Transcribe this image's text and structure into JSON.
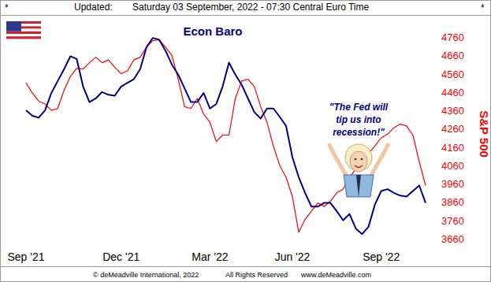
{
  "header": {
    "left_mark": "*",
    "label": "Updated:",
    "timestamp": "Saturday 03 September, 2022 - 07:30 Central Euro Time",
    "right_mark": "*"
  },
  "chart_data": {
    "type": "line",
    "title": "Econ Baro",
    "ylabel": "S&P 500",
    "annotation": "\"The Fed will\ntip us into\nrecession!\"",
    "categories": [
      "Sep '21",
      null,
      null,
      null,
      null,
      null,
      null,
      null,
      null,
      null,
      null,
      null,
      null,
      null,
      null,
      "Dec '21",
      null,
      null,
      null,
      null,
      null,
      null,
      null,
      null,
      null,
      null,
      null,
      null,
      null,
      "Mar '22",
      null,
      null,
      null,
      null,
      null,
      null,
      null,
      null,
      null,
      null,
      null,
      null,
      "Jun '22",
      null,
      null,
      null,
      null,
      null,
      null,
      null,
      null,
      null,
      null,
      null,
      null,
      null,
      "Sep '22",
      null,
      null,
      null,
      null,
      null,
      null,
      null
    ],
    "series": [
      {
        "name": "Econ Baro",
        "color": "#000080",
        "values": [
          4360,
          4330,
          4320,
          4360,
          4455,
          4520,
          4585,
          4655,
          4640,
          4490,
          4405,
          4425,
          4460,
          4445,
          4440,
          4490,
          4510,
          4530,
          4585,
          4705,
          4755,
          4745,
          4685,
          4610,
          4555,
          4480,
          4405,
          4405,
          4455,
          4370,
          4395,
          4490,
          4620,
          4555,
          4500,
          4425,
          4350,
          4315,
          4370,
          4370,
          4325,
          4275,
          4105,
          3995,
          3910,
          3835,
          3835,
          3855,
          3855,
          3810,
          3760,
          3795,
          3715,
          3685,
          3725,
          3845,
          3920,
          3930,
          3910,
          3895,
          3890,
          3920,
          3950,
          3855
        ]
      },
      {
        "name": "S&P 500",
        "color": "#ff0000",
        "values": [
          4510,
          4455,
          4410,
          4395,
          4360,
          4370,
          4470,
          4545,
          4590,
          4585,
          4620,
          4650,
          4620,
          4635,
          4595,
          4560,
          4575,
          4635,
          4650,
          4705,
          4740,
          4745,
          4705,
          4660,
          4530,
          4380,
          4370,
          4425,
          4340,
          4295,
          4190,
          4225,
          4225,
          4425,
          4520,
          4530,
          4490,
          4380,
          4295,
          4165,
          4060,
          3995,
          3890,
          3695,
          3765,
          3810,
          3855,
          3835,
          3865,
          3910,
          3930,
          3995,
          4040,
          4080,
          4125,
          4165,
          4210,
          4230,
          4265,
          4285,
          4275,
          4225,
          4080,
          3950
        ]
      }
    ],
    "ylim": [
      3660,
      4760
    ],
    "yticks": [
      3660,
      3760,
      3860,
      3960,
      4060,
      4160,
      4260,
      4360,
      4460,
      4560,
      4660,
      4760
    ],
    "grid": false
  },
  "footer": {
    "copyright": "© deMeadville International, 2022",
    "rights": "All Rights Reserved",
    "website": "www.deMeadville.com"
  }
}
